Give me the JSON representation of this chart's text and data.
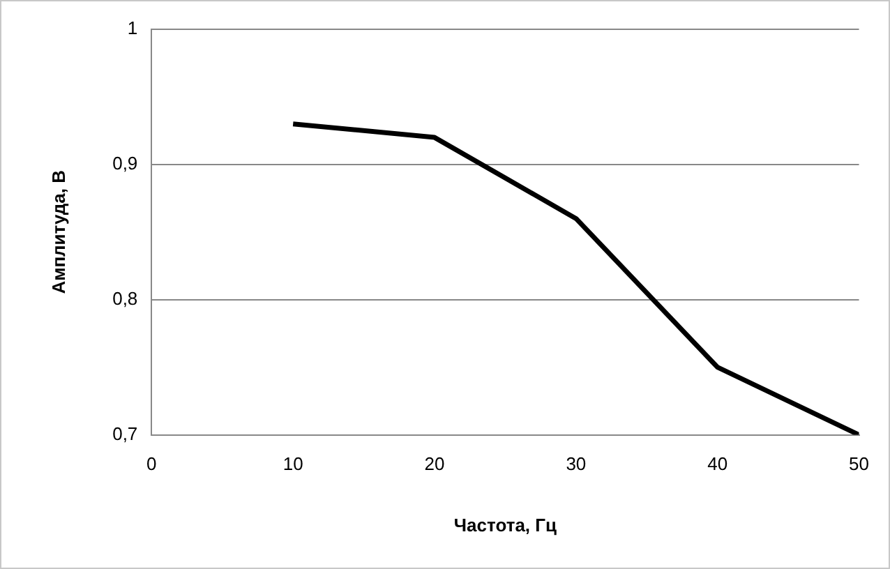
{
  "chart_data": {
    "type": "line",
    "xlabel": "Частота, Гц",
    "ylabel": "Амплитуда, В",
    "x": [
      10,
      20,
      30,
      40,
      50
    ],
    "series": [
      {
        "color": "#000000",
        "values": [
          0.93,
          0.92,
          0.86,
          0.75,
          0.7
        ]
      }
    ],
    "xlim": [
      0,
      50
    ],
    "xticks": [
      0,
      10,
      20,
      30,
      40,
      50
    ],
    "ylim": [
      0.7,
      1
    ],
    "yticks": [
      {
        "value": 0.7,
        "label": "0,7"
      },
      {
        "value": 0.8,
        "label": "0,8"
      },
      {
        "value": 0.9,
        "label": "0,9"
      },
      1
    ],
    "grid": "y",
    "legend": false,
    "marker": "none",
    "line_style": "solid"
  }
}
